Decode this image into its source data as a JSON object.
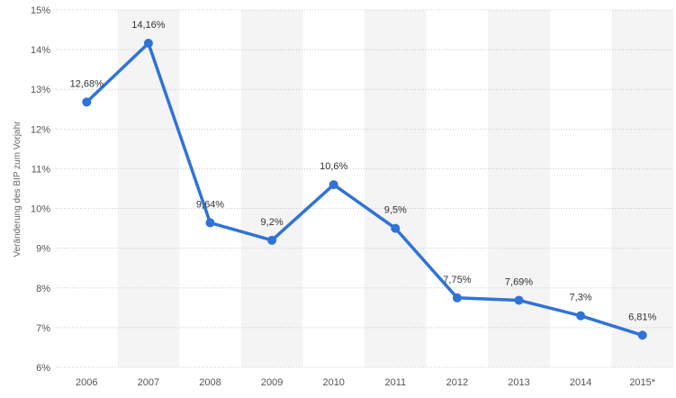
{
  "chart_data": {
    "type": "line",
    "title": "",
    "xlabel": "",
    "ylabel": "Veränderung des BIP zum Vorjahr",
    "categories": [
      "2006",
      "2007",
      "2008",
      "2009",
      "2010",
      "2011",
      "2012",
      "2013",
      "2014",
      "2015*"
    ],
    "series": [
      {
        "name": "Veränderung des BIP zum Vorjahr",
        "values": [
          12.68,
          14.16,
          9.64,
          9.2,
          10.6,
          9.5,
          7.75,
          7.69,
          7.3,
          6.81
        ],
        "labels": [
          "12,68%",
          "14,16%",
          "9,64%",
          "9,2%",
          "10,6%",
          "9,5%",
          "7,75%",
          "7,69%",
          "7,3%",
          "6,81%"
        ]
      }
    ],
    "ylim": [
      6,
      15
    ],
    "yticks": [
      6,
      7,
      8,
      9,
      10,
      11,
      12,
      13,
      14,
      15
    ],
    "ytick_labels": [
      "6%",
      "7%",
      "8%",
      "9%",
      "10%",
      "11%",
      "12%",
      "13%",
      "14%",
      "15%"
    ],
    "grid": true,
    "colors": {
      "line": "#2f73d8",
      "band": "#f4f4f4",
      "grid": "#c8c8c8",
      "text": "#333333",
      "axis_text": "#555555"
    }
  }
}
